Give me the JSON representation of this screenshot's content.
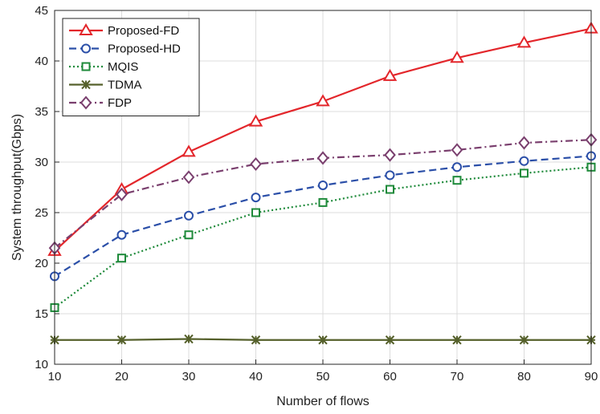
{
  "chart_data": {
    "type": "line",
    "title": "",
    "xlabel": "Number of flows",
    "ylabel": "System throughput(Gbps)",
    "x": [
      10,
      20,
      30,
      40,
      50,
      60,
      70,
      80,
      90
    ],
    "xlim": [
      10,
      90
    ],
    "ylim": [
      10,
      45
    ],
    "xticks": [
      "10",
      "20",
      "30",
      "40",
      "50",
      "60",
      "70",
      "80",
      "90"
    ],
    "yticks": [
      "10",
      "15",
      "20",
      "25",
      "30",
      "35",
      "40",
      "45"
    ],
    "grid": true,
    "legend_position": "top-left",
    "series": [
      {
        "name": "Proposed-FD",
        "color": "#e3262b",
        "line": "solid",
        "marker": "triangle",
        "values": [
          21.2,
          27.3,
          31.0,
          34.0,
          36.0,
          38.5,
          40.3,
          41.8,
          43.2
        ]
      },
      {
        "name": "Proposed-HD",
        "color": "#2b4fa8",
        "line": "dashed",
        "marker": "circle",
        "values": [
          18.7,
          22.8,
          24.7,
          26.5,
          27.7,
          28.7,
          29.5,
          30.1,
          30.6
        ]
      },
      {
        "name": "MQIS",
        "color": "#1e8a3a",
        "line": "dotted",
        "marker": "square",
        "values": [
          15.6,
          20.5,
          22.8,
          25.0,
          26.0,
          27.3,
          28.2,
          28.9,
          29.5
        ]
      },
      {
        "name": "TDMA",
        "color": "#55602b",
        "line": "solid",
        "marker": "asterisk",
        "values": [
          12.4,
          12.4,
          12.5,
          12.4,
          12.4,
          12.4,
          12.4,
          12.4,
          12.4
        ]
      },
      {
        "name": "FDP",
        "color": "#7a3f6e",
        "line": "dashdot",
        "marker": "diamond",
        "values": [
          21.5,
          26.8,
          28.5,
          29.8,
          30.4,
          30.7,
          31.2,
          31.9,
          32.2
        ]
      }
    ]
  }
}
